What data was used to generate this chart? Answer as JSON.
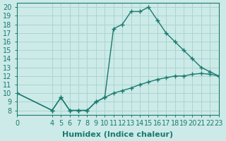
{
  "xlabel": "Humidex (Indice chaleur)",
  "bg_color": "#cceae8",
  "line_color": "#1a7a6e",
  "xlim": [
    0,
    23
  ],
  "ylim": [
    7.5,
    20.5
  ],
  "xticks": [
    0,
    4,
    5,
    6,
    7,
    8,
    9,
    10,
    11,
    12,
    13,
    14,
    15,
    16,
    17,
    18,
    19,
    20,
    21,
    22,
    23
  ],
  "yticks": [
    8,
    9,
    10,
    11,
    12,
    13,
    14,
    15,
    16,
    17,
    18,
    19,
    20
  ],
  "curve1_x": [
    0,
    4,
    5,
    6,
    7,
    8,
    9,
    10,
    11,
    12,
    13,
    14,
    15,
    16,
    17,
    18,
    19,
    20,
    21,
    22,
    23
  ],
  "curve1_y": [
    10,
    8,
    9.5,
    8,
    8,
    8,
    9,
    9.5,
    17.5,
    18,
    19.5,
    19.5,
    20,
    18.5,
    17,
    16,
    15,
    14,
    13,
    12.5,
    12
  ],
  "curve2_x": [
    0,
    4,
    5,
    6,
    7,
    8,
    9,
    10,
    11,
    12,
    13,
    14,
    15,
    16,
    17,
    18,
    19,
    20,
    21,
    22,
    23
  ],
  "curve2_y": [
    10,
    8,
    9.5,
    8,
    8,
    8,
    9,
    9.5,
    10,
    10.3,
    10.6,
    11,
    11.3,
    11.6,
    11.8,
    12,
    12,
    12.2,
    12.3,
    12.2,
    12
  ],
  "grid_color": "#aad5d0",
  "font_size": 7,
  "label_fontsize": 8
}
